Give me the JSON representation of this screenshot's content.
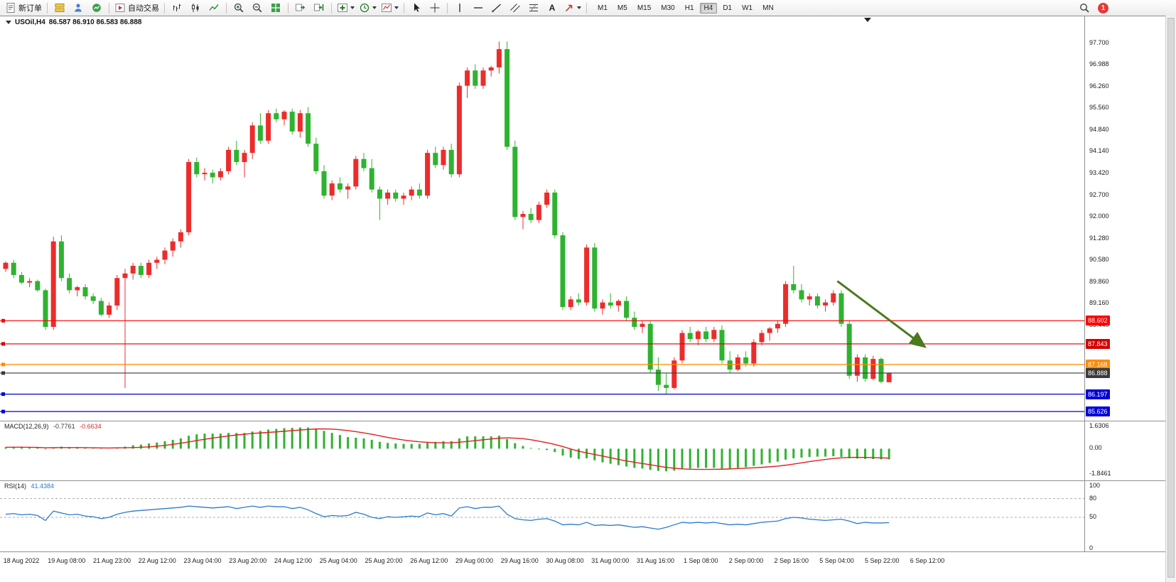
{
  "toolbar": {
    "new_order": "新订单",
    "auto_trading": "自动交易",
    "text_label": "A",
    "timeframes": [
      "M1",
      "M5",
      "M15",
      "M30",
      "H1",
      "H4",
      "D1",
      "W1",
      "MN"
    ],
    "active_timeframe": "H4",
    "notification_count": "1",
    "icons": [
      "new-order-icon",
      "market-watch-icon",
      "terminal-icon",
      "strategy-tester-icon",
      "auto-trading-icon",
      "bar-chart-icon",
      "candlestick-chart-icon",
      "line-chart-icon",
      "zoom-in-icon",
      "zoom-out-icon",
      "tile-windows-icon",
      "auto-scroll-icon",
      "chart-shift-icon",
      "indicators-icon",
      "periods-icon",
      "templates-icon",
      "cursor-icon",
      "crosshair-icon",
      "vertical-line-icon",
      "horizontal-line-icon",
      "trendline-icon",
      "channel-icon",
      "fibonacci-icon",
      "text-icon",
      "arrows-icon",
      "search-icon",
      "notification-badge"
    ]
  },
  "legend": {
    "symbol": "USOil,H4",
    "ohlc": "86.587 86.910 86.583 86.888"
  },
  "price_axis": {
    "ticks": [
      "97.700",
      "96.988",
      "96.260",
      "95.560",
      "94.840",
      "94.140",
      "93.420",
      "92.700",
      "92.000",
      "91.280",
      "90.580",
      "89.860",
      "89.160",
      "88.440",
      "87.720"
    ]
  },
  "hlines": [
    {
      "price": 88.602,
      "label": "88.602",
      "color": "#FF0000"
    },
    {
      "price": 87.843,
      "label": "87.843",
      "color": "#D40000"
    },
    {
      "price": 87.168,
      "label": "87.168",
      "color": "#FF8A00"
    },
    {
      "price": 86.888,
      "label": "86.888",
      "color": "#3A3A3A"
    },
    {
      "price": 86.197,
      "label": "86.197",
      "color": "#0000D8"
    },
    {
      "price": 85.626,
      "label": "85.626",
      "color": "#0000D8"
    }
  ],
  "arrow": {
    "from": {
      "t": 104.5,
      "p": 89.9
    },
    "to": {
      "t": 115.5,
      "p": 87.75
    },
    "color": "#4C7A1E"
  },
  "macd": {
    "label": "MACD(12,26,9)",
    "main_value": "-0.7761",
    "signal_value": "-0.6634",
    "axis": [
      {
        "label": "1.6306",
        "v": 1.6306
      },
      {
        "label": "0.00",
        "v": 0
      },
      {
        "label": "-1.8461",
        "v": -1.8461
      }
    ]
  },
  "rsi": {
    "label": "RSI(14)",
    "value": "41.4384",
    "axis": [
      {
        "label": "100",
        "v": 100
      },
      {
        "label": "80",
        "v": 80
      },
      {
        "label": "50",
        "v": 50
      },
      {
        "label": "0",
        "v": 0
      }
    ],
    "levels": [
      80,
      50
    ]
  },
  "colors": {
    "bull": "#EC2C2C",
    "bear": "#2FB32F",
    "macd_hist": "#2FB32F",
    "macd_signal": "#E02020",
    "rsi": "#2B7BC9"
  },
  "chart_data": {
    "type": "candlestick",
    "symbol": "USOil",
    "period": "H4",
    "ohlc_current": {
      "open": 86.587,
      "high": 86.91,
      "low": 86.583,
      "close": 86.888
    },
    "price_range": [
      85.35,
      98.55
    ],
    "macd_range": [
      -1.8461,
      1.6306
    ],
    "candles": [
      [
        90.3,
        90.55,
        90.2,
        90.5
      ],
      [
        90.5,
        90.6,
        90.0,
        90.1
      ],
      [
        90.1,
        90.2,
        89.8,
        89.85
      ],
      [
        89.85,
        90.0,
        89.7,
        89.9
      ],
      [
        89.9,
        89.95,
        89.55,
        89.6
      ],
      [
        89.6,
        89.65,
        88.3,
        88.4
      ],
      [
        88.4,
        91.35,
        88.3,
        91.2
      ],
      [
        91.2,
        91.4,
        89.9,
        90.0
      ],
      [
        90.0,
        90.15,
        89.5,
        89.6
      ],
      [
        89.6,
        89.75,
        89.4,
        89.7
      ],
      [
        89.7,
        89.8,
        89.3,
        89.4
      ],
      [
        89.4,
        89.5,
        89.15,
        89.25
      ],
      [
        89.25,
        89.35,
        88.75,
        88.8
      ],
      [
        88.8,
        89.2,
        88.7,
        89.1
      ],
      [
        89.1,
        90.1,
        88.95,
        90.0
      ],
      [
        90.0,
        90.3,
        86.4,
        90.15
      ],
      [
        90.15,
        90.5,
        89.95,
        90.4
      ],
      [
        90.4,
        90.5,
        90.0,
        90.1
      ],
      [
        90.1,
        90.6,
        90.0,
        90.5
      ],
      [
        90.5,
        90.7,
        90.3,
        90.6
      ],
      [
        90.6,
        91.0,
        90.45,
        90.9
      ],
      [
        90.9,
        91.3,
        90.7,
        91.2
      ],
      [
        91.2,
        91.6,
        91.0,
        91.5
      ],
      [
        91.5,
        93.9,
        91.4,
        93.8
      ],
      [
        93.8,
        93.95,
        93.3,
        93.4
      ],
      [
        93.4,
        93.6,
        93.2,
        93.45
      ],
      [
        93.45,
        93.55,
        93.1,
        93.3
      ],
      [
        93.3,
        93.6,
        93.2,
        93.5
      ],
      [
        93.5,
        94.3,
        93.4,
        94.2
      ],
      [
        94.2,
        94.5,
        93.7,
        93.8
      ],
      [
        93.8,
        94.2,
        93.3,
        94.1
      ],
      [
        94.1,
        95.1,
        93.9,
        95.0
      ],
      [
        95.0,
        95.4,
        94.4,
        94.5
      ],
      [
        94.5,
        95.5,
        94.4,
        95.4
      ],
      [
        95.4,
        95.55,
        95.1,
        95.2
      ],
      [
        95.2,
        95.5,
        95.0,
        95.45
      ],
      [
        95.45,
        95.55,
        94.7,
        94.8
      ],
      [
        94.8,
        95.5,
        94.6,
        95.4
      ],
      [
        95.4,
        95.6,
        94.3,
        94.4
      ],
      [
        94.4,
        94.6,
        93.4,
        93.5
      ],
      [
        93.5,
        93.7,
        92.6,
        92.7
      ],
      [
        92.7,
        93.2,
        92.55,
        93.1
      ],
      [
        93.1,
        93.3,
        92.8,
        92.9
      ],
      [
        92.9,
        93.1,
        92.6,
        93.0
      ],
      [
        93.0,
        94.0,
        92.9,
        93.9
      ],
      [
        93.9,
        94.1,
        93.5,
        93.6
      ],
      [
        93.6,
        93.9,
        92.8,
        92.9
      ],
      [
        92.9,
        93.0,
        91.9,
        92.6
      ],
      [
        92.6,
        92.9,
        92.4,
        92.8
      ],
      [
        92.8,
        92.9,
        92.5,
        92.6
      ],
      [
        92.6,
        92.8,
        92.4,
        92.7
      ],
      [
        92.7,
        93.0,
        92.55,
        92.9
      ],
      [
        92.9,
        93.1,
        92.6,
        92.7
      ],
      [
        92.7,
        94.2,
        92.6,
        94.1
      ],
      [
        94.1,
        94.3,
        93.6,
        93.7
      ],
      [
        93.7,
        94.3,
        93.55,
        94.2
      ],
      [
        94.2,
        94.4,
        93.3,
        93.4
      ],
      [
        93.4,
        96.4,
        93.3,
        96.3
      ],
      [
        96.3,
        96.9,
        95.9,
        96.8
      ],
      [
        96.8,
        97.0,
        96.2,
        96.3
      ],
      [
        96.3,
        96.9,
        96.2,
        96.8
      ],
      [
        96.8,
        96.95,
        96.6,
        96.9
      ],
      [
        96.9,
        97.75,
        96.7,
        97.5
      ],
      [
        97.5,
        97.75,
        94.2,
        94.3
      ],
      [
        94.3,
        94.5,
        91.9,
        92.0
      ],
      [
        92.0,
        92.2,
        91.6,
        92.1
      ],
      [
        92.1,
        92.3,
        91.8,
        91.9
      ],
      [
        91.9,
        92.5,
        91.8,
        92.4
      ],
      [
        92.4,
        92.9,
        92.3,
        92.8
      ],
      [
        92.8,
        92.9,
        91.3,
        91.4
      ],
      [
        91.4,
        91.5,
        88.95,
        89.05
      ],
      [
        89.05,
        89.4,
        88.95,
        89.3
      ],
      [
        89.3,
        89.5,
        89.1,
        89.2
      ],
      [
        89.2,
        91.1,
        89.1,
        91.0
      ],
      [
        91.0,
        91.15,
        88.9,
        89.0
      ],
      [
        89.0,
        89.3,
        88.8,
        89.2
      ],
      [
        89.2,
        89.5,
        89.0,
        89.1
      ],
      [
        89.1,
        89.3,
        88.9,
        89.25
      ],
      [
        89.25,
        89.4,
        88.6,
        88.7
      ],
      [
        88.7,
        88.9,
        88.3,
        88.4
      ],
      [
        88.4,
        88.6,
        88.2,
        88.5
      ],
      [
        88.5,
        88.6,
        86.9,
        87.0
      ],
      [
        87.0,
        87.4,
        86.3,
        86.5
      ],
      [
        86.5,
        86.9,
        86.2,
        86.4
      ],
      [
        86.4,
        87.4,
        86.35,
        87.3
      ],
      [
        87.3,
        88.3,
        87.2,
        88.2
      ],
      [
        88.2,
        88.4,
        87.9,
        88.0
      ],
      [
        88.0,
        88.3,
        87.8,
        88.25
      ],
      [
        88.25,
        88.4,
        87.9,
        88.0
      ],
      [
        88.0,
        88.4,
        87.9,
        88.3
      ],
      [
        88.3,
        88.45,
        87.2,
        87.3
      ],
      [
        87.3,
        87.6,
        86.9,
        87.0
      ],
      [
        87.0,
        87.5,
        86.95,
        87.4
      ],
      [
        87.4,
        87.6,
        87.1,
        87.2
      ],
      [
        87.2,
        88.0,
        87.1,
        87.9
      ],
      [
        87.9,
        88.3,
        87.8,
        88.2
      ],
      [
        88.2,
        88.4,
        87.95,
        88.35
      ],
      [
        88.35,
        88.6,
        88.2,
        88.5
      ],
      [
        88.5,
        89.9,
        88.4,
        89.8
      ],
      [
        89.8,
        90.4,
        89.5,
        89.6
      ],
      [
        89.6,
        89.8,
        89.2,
        89.3
      ],
      [
        89.3,
        89.5,
        89.1,
        89.4
      ],
      [
        89.4,
        89.5,
        89.0,
        89.1
      ],
      [
        89.1,
        89.3,
        88.9,
        89.2
      ],
      [
        89.2,
        89.6,
        89.1,
        89.5
      ],
      [
        89.5,
        89.6,
        88.4,
        88.5
      ],
      [
        88.5,
        88.6,
        86.7,
        86.8
      ],
      [
        86.8,
        87.5,
        86.6,
        87.4
      ],
      [
        87.4,
        87.5,
        86.6,
        86.7
      ],
      [
        86.7,
        87.45,
        86.65,
        87.35
      ],
      [
        87.35,
        87.4,
        86.55,
        86.6
      ],
      [
        86.587,
        86.91,
        86.583,
        86.888
      ]
    ],
    "macd_histogram": [
      0.1,
      0.12,
      0.1,
      0.08,
      0.06,
      -0.05,
      0.1,
      0.15,
      0.1,
      0.08,
      0.05,
      0.02,
      -0.02,
      0.0,
      0.1,
      0.15,
      0.25,
      0.3,
      0.38,
      0.45,
      0.55,
      0.65,
      0.75,
      0.95,
      1.05,
      1.1,
      1.1,
      1.1,
      1.15,
      1.15,
      1.15,
      1.25,
      1.3,
      1.4,
      1.45,
      1.5,
      1.52,
      1.55,
      1.55,
      1.45,
      1.3,
      1.15,
      1.0,
      0.85,
      0.8,
      0.75,
      0.65,
      0.5,
      0.42,
      0.38,
      0.35,
      0.35,
      0.35,
      0.45,
      0.5,
      0.55,
      0.55,
      0.75,
      0.9,
      0.9,
      0.9,
      0.9,
      0.95,
      0.7,
      0.4,
      0.2,
      0.05,
      -0.05,
      -0.1,
      -0.25,
      -0.5,
      -0.65,
      -0.75,
      -0.7,
      -0.85,
      -1.0,
      -1.1,
      -1.2,
      -1.3,
      -1.4,
      -1.45,
      -1.55,
      -1.62,
      -1.65,
      -1.6,
      -1.5,
      -1.45,
      -1.4,
      -1.4,
      -1.4,
      -1.45,
      -1.45,
      -1.4,
      -1.35,
      -1.25,
      -1.15,
      -1.05,
      -0.95,
      -0.8,
      -0.7,
      -0.65,
      -0.6,
      -0.58,
      -0.58,
      -0.55,
      -0.6,
      -0.7,
      -0.72,
      -0.75,
      -0.76,
      -0.78,
      -0.7761
    ],
    "rsi": [
      55,
      56,
      54,
      55,
      53,
      45,
      60,
      57,
      54,
      55,
      52,
      51,
      48,
      50,
      55,
      58,
      60,
      61,
      62,
      63,
      64,
      65,
      66,
      68,
      67,
      66,
      65,
      66,
      67,
      64,
      66,
      68,
      66,
      68,
      67,
      67,
      64,
      66,
      62,
      56,
      51,
      53,
      52,
      53,
      58,
      55,
      50,
      48,
      51,
      50,
      51,
      52,
      51,
      57,
      54,
      56,
      52,
      65,
      67,
      64,
      66,
      66,
      68,
      55,
      48,
      46,
      45,
      47,
      48,
      44,
      38,
      39,
      38,
      42,
      37,
      38,
      37,
      38,
      36,
      34,
      35,
      33,
      31,
      34,
      38,
      42,
      41,
      42,
      41,
      42,
      40,
      38,
      39,
      38,
      40,
      42,
      43,
      44,
      48,
      50,
      49,
      47,
      46,
      45,
      46,
      47,
      44,
      40,
      42,
      41,
      41,
      41.4384
    ],
    "time_labels": [
      "18 Aug 2022",
      "19 Aug 08:00",
      "21 Aug 23:00",
      "22 Aug 12:00",
      "23 Aug 04:00",
      "23 Aug 20:00",
      "24 Aug 12:00",
      "25 Aug 04:00",
      "25 Aug 20:00",
      "26 Aug 12:00",
      "29 Aug 00:00",
      "29 Aug 16:00",
      "30 Aug 08:00",
      "31 Aug 00:00",
      "31 Aug 16:00",
      "1 Sep 08:00",
      "2 Sep 00:00",
      "2 Sep 16:00",
      "5 Sep 04:00",
      "5 Sep 22:00",
      "6 Sep 12:00"
    ]
  }
}
